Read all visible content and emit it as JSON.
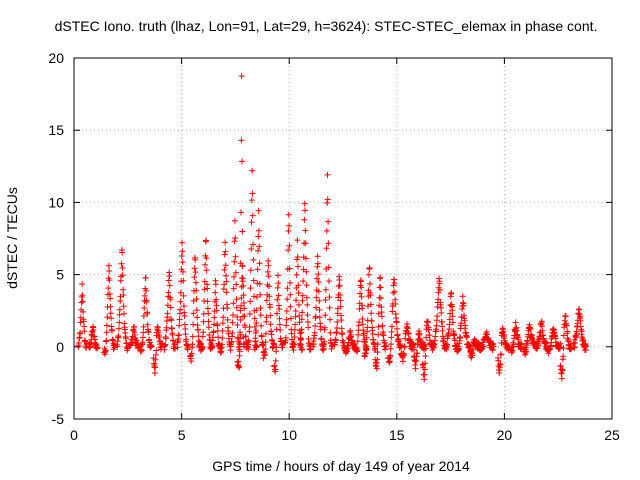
{
  "chart_data": {
    "type": "scatter",
    "title": "dSTEC Iono. truth (lhaz, Lon=91, Lat=29, h=3624): STEC-STEC_elemax in phase cont.",
    "xlabel": "GPS time / hours of day 149 of year 2014",
    "ylabel": "dSTEC  / TECUs",
    "xlim": [
      0,
      25
    ],
    "ylim": [
      -5,
      20
    ],
    "xticks": [
      0,
      5,
      10,
      15,
      20,
      25
    ],
    "yticks": [
      -5,
      0,
      5,
      10,
      15,
      20
    ],
    "xtick_labels": [
      "0",
      "5",
      "10",
      "15",
      "20",
      "25"
    ],
    "ytick_labels": [
      "-5",
      "0",
      "5",
      "10",
      "15",
      "20"
    ],
    "grid": true,
    "marker": "+",
    "series_color": "#ff0000",
    "arcs": [
      {
        "s": 0.2,
        "e": 0.6,
        "p": 4.3
      },
      {
        "s": 0.7,
        "e": 1.1,
        "p": 1.4
      },
      {
        "s": 1.4,
        "e": 1.9,
        "p": 5.7,
        "n": -0.8
      },
      {
        "s": 2.0,
        "e": 2.5,
        "p": 7.0
      },
      {
        "s": 2.6,
        "e": 3.0,
        "p": 1.5
      },
      {
        "s": 3.1,
        "e": 3.6,
        "p": 5.0,
        "n": -0.4
      },
      {
        "s": 3.7,
        "e": 4.1,
        "p": 1.6,
        "n": -1.8
      },
      {
        "s": 4.2,
        "e": 4.7,
        "p": 5.3
      },
      {
        "s": 4.8,
        "e": 5.3,
        "p": 7.5
      },
      {
        "s": 5.4,
        "e": 5.9,
        "p": 6.5,
        "n": -1.5
      },
      {
        "s": 5.9,
        "e": 6.4,
        "p": 7.8,
        "n": -0.9
      },
      {
        "s": 6.4,
        "e": 6.8,
        "p": 4.8
      },
      {
        "s": 6.8,
        "e": 7.3,
        "p": 7.4,
        "n": -0.7
      },
      {
        "s": 7.3,
        "e": 7.7,
        "p": 8.7
      },
      {
        "s": 7.6,
        "e": 8.1,
        "p": 6.0,
        "n": -2.0
      },
      {
        "s": 7.7,
        "e": 7.9,
        "p": 19.8
      },
      {
        "s": 8.1,
        "e": 8.5,
        "p": 12.3
      },
      {
        "s": 8.4,
        "e": 8.8,
        "p": 9.5
      },
      {
        "s": 8.8,
        "e": 9.3,
        "p": 6.2,
        "n": -1.2
      },
      {
        "s": 9.3,
        "e": 9.7,
        "p": 5.0,
        "n": -2.5
      },
      {
        "s": 9.8,
        "e": 10.2,
        "p": 9.5
      },
      {
        "s": 10.2,
        "e": 10.6,
        "p": 7.4
      },
      {
        "s": 10.5,
        "e": 11.0,
        "p": 10.2
      },
      {
        "s": 11.1,
        "e": 11.6,
        "p": 6.5
      },
      {
        "s": 11.6,
        "e": 12.0,
        "p": 12.0
      },
      {
        "s": 12.1,
        "e": 12.6,
        "p": 5.3
      },
      {
        "s": 12.6,
        "e": 13.1,
        "p": 1.0,
        "n": -0.5
      },
      {
        "s": 13.1,
        "e": 13.6,
        "p": 5.0,
        "n": -0.7
      },
      {
        "s": 13.5,
        "e": 14.0,
        "p": 5.8,
        "n": -1.0
      },
      {
        "s": 14.0,
        "e": 14.5,
        "p": 5.0,
        "n": -2.0
      },
      {
        "s": 14.6,
        "e": 15.2,
        "p": 5.0,
        "n": -1.5
      },
      {
        "s": 15.2,
        "e": 15.8,
        "p": 1.5,
        "n": -1.0
      },
      {
        "s": 15.8,
        "e": 16.3,
        "p": 1.0,
        "n": -1.5
      },
      {
        "s": 16.2,
        "e": 16.7,
        "p": 2.0,
        "n": -2.4
      },
      {
        "s": 16.7,
        "e": 17.3,
        "p": 5.0
      },
      {
        "s": 17.3,
        "e": 17.8,
        "p": 4.0
      },
      {
        "s": 17.8,
        "e": 18.4,
        "p": 3.5,
        "n": -0.4
      },
      {
        "s": 18.4,
        "e": 18.9,
        "p": 0.5,
        "n": -0.7
      },
      {
        "s": 18.9,
        "e": 19.5,
        "p": 1.1
      },
      {
        "s": 19.7,
        "e": 20.2,
        "p": 1.2,
        "n": -2.0
      },
      {
        "s": 20.3,
        "e": 20.8,
        "p": 1.6,
        "n": -0.4
      },
      {
        "s": 20.9,
        "e": 21.5,
        "p": 1.5,
        "n": -0.5
      },
      {
        "s": 21.5,
        "e": 22.0,
        "p": 1.8
      },
      {
        "s": 22.0,
        "e": 22.6,
        "p": 1.3,
        "n": -0.6
      },
      {
        "s": 22.6,
        "e": 23.1,
        "p": 2.5,
        "n": -2.5
      },
      {
        "s": 23.2,
        "e": 23.8,
        "p": 2.9
      }
    ]
  }
}
